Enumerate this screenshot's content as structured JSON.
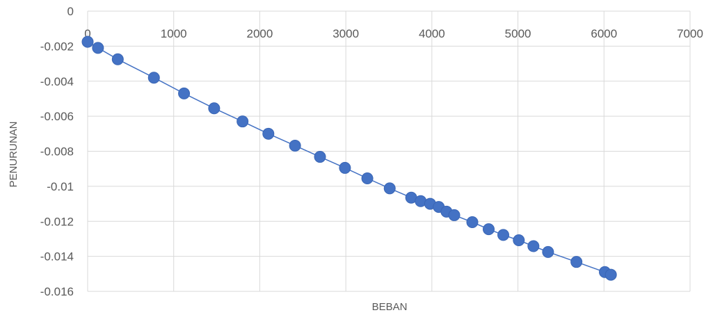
{
  "chart_data": {
    "type": "scatter",
    "title": "",
    "xlabel": "BEBAN",
    "ylabel": "PENURUNAN",
    "xlim": [
      0,
      7000
    ],
    "ylim": [
      -0.016,
      0
    ],
    "x_ticks": [
      "0",
      "1000",
      "2000",
      "3000",
      "4000",
      "5000",
      "6000",
      "7000"
    ],
    "y_ticks": [
      "0",
      "-0.002",
      "-0.004",
      "-0.006",
      "-0.008",
      "-0.01",
      "-0.012",
      "-0.014",
      "-0.016"
    ],
    "grid": true,
    "legend": false,
    "line_connected": true,
    "marker_color": "#4472C4",
    "line_color": "#4472C4",
    "series": [
      {
        "x": [
          0,
          120,
          350,
          770,
          1120,
          1470,
          1800,
          2100,
          2410,
          2700,
          2990,
          3250,
          3510,
          3760,
          3870,
          3980,
          4080,
          4170,
          4260,
          4470,
          4660,
          4830,
          5010,
          5180,
          5350,
          5680,
          6010,
          6080
        ],
        "y": [
          -0.00175,
          -0.0021,
          -0.00275,
          -0.0038,
          -0.0047,
          -0.00555,
          -0.0063,
          -0.007,
          -0.00768,
          -0.00832,
          -0.00895,
          -0.00955,
          -0.01012,
          -0.01065,
          -0.01085,
          -0.011,
          -0.01118,
          -0.01145,
          -0.01165,
          -0.01205,
          -0.01245,
          -0.01278,
          -0.01308,
          -0.01342,
          -0.01375,
          -0.01432,
          -0.0149,
          -0.01505
        ]
      }
    ]
  }
}
